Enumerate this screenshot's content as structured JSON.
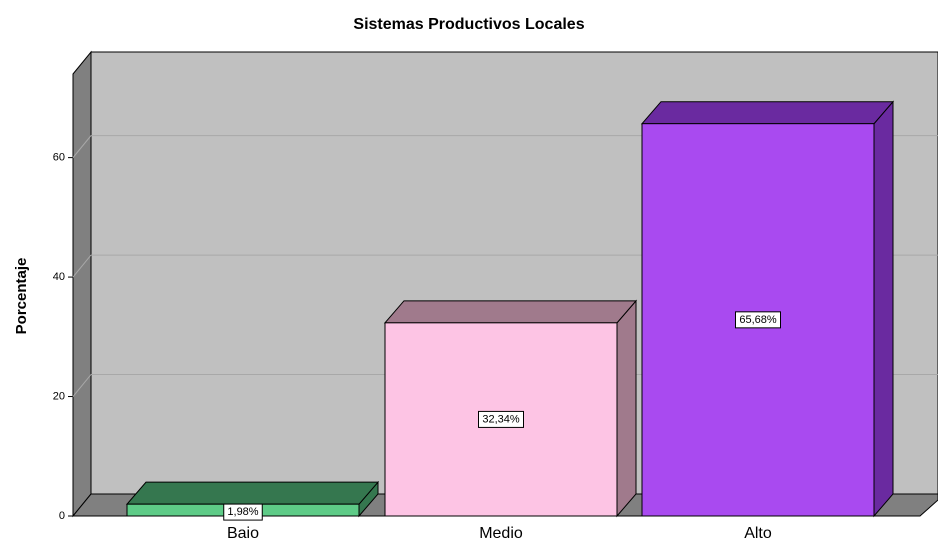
{
  "chart_data": {
    "type": "bar",
    "title": "Sistemas Productivos Locales",
    "y_label": "Porcentaje",
    "categories": [
      "Baio",
      "Medio",
      "Alto"
    ],
    "values": [
      1.98,
      32.34,
      65.68
    ],
    "value_labels": [
      "1,98%",
      "32,34%",
      "65,68%"
    ],
    "colors": [
      "#5ecb87",
      "#fdc4e4",
      "#a94af0"
    ],
    "top_colors": [
      "#35774f",
      "#a07a8c",
      "#6a2aa0"
    ],
    "ylim": [
      0,
      74
    ],
    "yticks": [
      0,
      20,
      40,
      60
    ],
    "grid": true
  }
}
